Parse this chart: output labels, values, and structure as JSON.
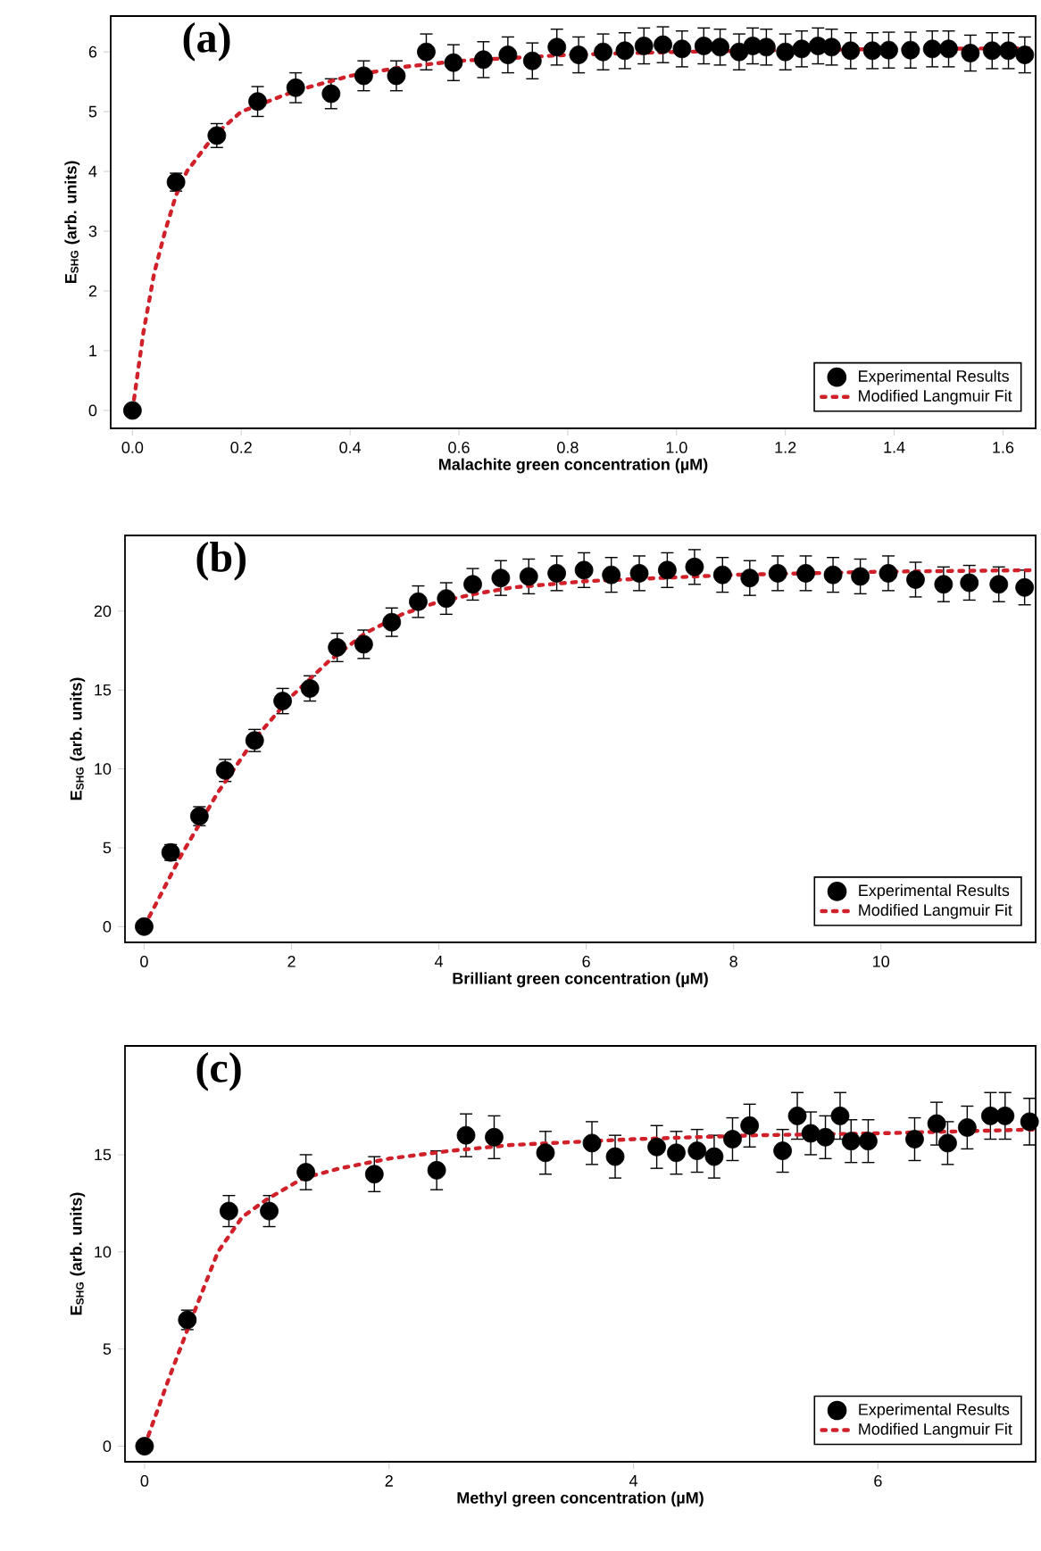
{
  "chart_data": [
    {
      "type": "scatter",
      "annotations": [
        "(a)"
      ],
      "xlabel": "Malachite green concentration (µM)",
      "ylabel": "E$_{SHG}$ (arb. units)",
      "legend": "bottom right",
      "xlim": [
        -0.04,
        1.66
      ],
      "ylim": [
        -0.3,
        6.6
      ],
      "xticks": [
        {
          "value": 0,
          "label": "0.0"
        },
        {
          "value": 0.2,
          "label": "0.2"
        },
        {
          "value": 0.4,
          "label": "0.4"
        },
        {
          "value": 0.6,
          "label": "0.6"
        },
        {
          "value": 0.8,
          "label": "0.8"
        },
        {
          "value": 1.0,
          "label": "1.0"
        },
        {
          "value": 1.2,
          "label": "1.2"
        },
        {
          "value": 1.4,
          "label": "1.4"
        },
        {
          "value": 1.6,
          "label": "1.6"
        }
      ],
      "yticks": [
        0,
        1,
        2,
        3,
        4,
        5,
        6
      ],
      "series": [
        {
          "name": "Experimental Results",
          "color": "#000000",
          "marker": "circle",
          "x": [
            0,
            0.08,
            0.155,
            0.23,
            0.3,
            0.365,
            0.425,
            0.485,
            0.54,
            0.59,
            0.645,
            0.69,
            0.735,
            0.78,
            0.82,
            0.865,
            0.905,
            0.94,
            0.975,
            1.01,
            1.05,
            1.08,
            1.115,
            1.14,
            1.165,
            1.2,
            1.23,
            1.26,
            1.285,
            1.32,
            1.36,
            1.39,
            1.43,
            1.47,
            1.5,
            1.54,
            1.58,
            1.61,
            1.64
          ],
          "values": [
            0,
            3.82,
            4.6,
            5.17,
            5.4,
            5.3,
            5.6,
            5.6,
            6.0,
            5.82,
            5.87,
            5.95,
            5.85,
            6.08,
            5.95,
            6.0,
            6.02,
            6.1,
            6.12,
            6.05,
            6.1,
            6.08,
            6.0,
            6.1,
            6.08,
            6.0,
            6.05,
            6.1,
            6.08,
            6.02,
            6.02,
            6.03,
            6.03,
            6.05,
            6.05,
            5.98,
            6.02,
            6.02,
            5.95
          ],
          "errors": [
            0.05,
            0.15,
            0.2,
            0.25,
            0.25,
            0.25,
            0.25,
            0.25,
            0.3,
            0.3,
            0.3,
            0.3,
            0.3,
            0.3,
            0.3,
            0.3,
            0.3,
            0.3,
            0.3,
            0.3,
            0.3,
            0.3,
            0.3,
            0.3,
            0.3,
            0.3,
            0.3,
            0.3,
            0.3,
            0.3,
            0.3,
            0.3,
            0.3,
            0.3,
            0.3,
            0.3,
            0.3,
            0.3,
            0.3
          ]
        },
        {
          "name": "Modified Langmuir Fit",
          "type": "line",
          "line_style": "dotted",
          "marker": "none",
          "color": "#d0202a",
          "x": [
            0,
            0.02,
            0.04,
            0.06,
            0.08,
            0.1,
            0.15,
            0.2,
            0.3,
            0.4,
            0.5,
            0.6,
            0.8,
            1.0,
            1.2,
            1.4,
            1.66
          ],
          "values": [
            0,
            1.3,
            2.3,
            3.0,
            3.6,
            4.0,
            4.6,
            5.0,
            5.35,
            5.6,
            5.75,
            5.85,
            5.95,
            6.0,
            6.03,
            6.05,
            6.06
          ]
        }
      ]
    },
    {
      "type": "scatter",
      "annotations": [
        "(b)"
      ],
      "xlabel": "Brilliant green concentration (µM)",
      "ylabel": "E$_{SHG}$ (arb. units)",
      "legend": "bottom right",
      "xlim": [
        -0.26,
        12.1
      ],
      "ylim": [
        -1.0,
        24.8
      ],
      "xticks": [
        0,
        2,
        4,
        6,
        8,
        10
      ],
      "yticks": [
        0,
        5,
        10,
        15,
        20
      ],
      "series": [
        {
          "name": "Experimental Results",
          "color": "#000000",
          "marker": "circle",
          "x": [
            0,
            0.36,
            0.75,
            1.1,
            1.5,
            1.88,
            2.25,
            2.62,
            2.98,
            3.36,
            3.72,
            4.1,
            4.46,
            4.84,
            5.22,
            5.6,
            5.97,
            6.34,
            6.72,
            7.1,
            7.47,
            7.85,
            8.22,
            8.6,
            8.98,
            9.35,
            9.72,
            10.1,
            10.47,
            10.85,
            11.2,
            11.6,
            11.95
          ],
          "values": [
            0,
            4.7,
            7.0,
            9.9,
            11.8,
            14.3,
            15.1,
            17.7,
            17.9,
            19.3,
            20.6,
            20.8,
            21.7,
            22.1,
            22.2,
            22.4,
            22.6,
            22.3,
            22.4,
            22.6,
            22.8,
            22.3,
            22.1,
            22.4,
            22.4,
            22.3,
            22.2,
            22.4,
            22.0,
            21.7,
            21.8,
            21.7,
            21.5
          ],
          "errors": [
            0.3,
            0.5,
            0.6,
            0.7,
            0.7,
            0.8,
            0.8,
            0.9,
            0.9,
            0.9,
            1.0,
            1.0,
            1.0,
            1.1,
            1.1,
            1.1,
            1.1,
            1.1,
            1.1,
            1.1,
            1.1,
            1.1,
            1.1,
            1.1,
            1.1,
            1.1,
            1.1,
            1.1,
            1.1,
            1.1,
            1.1,
            1.1,
            1.1
          ]
        },
        {
          "name": "Modified Langmuir Fit",
          "type": "line",
          "line_style": "dotted",
          "marker": "none",
          "color": "#d0202a",
          "x": [
            0,
            0.5,
            1,
            1.5,
            2,
            2.5,
            3,
            3.5,
            4,
            4.5,
            5,
            6,
            7,
            8,
            10,
            12.1
          ],
          "values": [
            0,
            4.5,
            8.5,
            11.9,
            14.6,
            16.8,
            18.6,
            19.8,
            20.6,
            21.1,
            21.5,
            21.9,
            22.1,
            22.3,
            22.5,
            22.6
          ]
        }
      ]
    },
    {
      "type": "scatter",
      "annotations": [
        "(c)"
      ],
      "xlabel": "Methyl green concentration (µM)",
      "ylabel": "E$_{SHG}$ (arb. units)",
      "legend": "bottom right",
      "xlim": [
        -0.16,
        7.29
      ],
      "ylim": [
        -0.8,
        20.6
      ],
      "xticks": [
        0,
        2,
        4,
        6
      ],
      "yticks": [
        0,
        5,
        10,
        15
      ],
      "series": [
        {
          "name": "Experimental Results",
          "color": "#000000",
          "marker": "circle",
          "x": [
            0,
            0.35,
            0.69,
            1.02,
            1.32,
            1.88,
            2.39,
            2.63,
            2.86,
            3.28,
            3.66,
            3.85,
            4.19,
            4.35,
            4.52,
            4.66,
            4.81,
            4.95,
            5.22,
            5.34,
            5.45,
            5.57,
            5.69,
            5.78,
            5.92,
            6.3,
            6.48,
            6.57,
            6.73,
            6.92,
            7.04,
            7.24
          ],
          "values": [
            0,
            6.5,
            12.1,
            12.1,
            14.1,
            14.0,
            14.2,
            16.0,
            15.9,
            15.1,
            15.6,
            14.9,
            15.4,
            15.1,
            15.2,
            14.9,
            15.8,
            16.5,
            15.2,
            17.0,
            16.1,
            15.9,
            17.0,
            15.7,
            15.7,
            15.8,
            16.6,
            15.6,
            16.4,
            17.0,
            17.0,
            16.7
          ],
          "errors": [
            0.3,
            0.5,
            0.8,
            0.8,
            0.9,
            0.9,
            1.0,
            1.1,
            1.1,
            1.1,
            1.1,
            1.1,
            1.1,
            1.1,
            1.1,
            1.1,
            1.1,
            1.1,
            1.1,
            1.2,
            1.1,
            1.1,
            1.2,
            1.1,
            1.1,
            1.1,
            1.1,
            1.1,
            1.1,
            1.2,
            1.2,
            1.2
          ]
        },
        {
          "name": "Modified Langmuir Fit",
          "type": "line",
          "line_style": "dotted",
          "marker": "none",
          "color": "#d0202a",
          "x": [
            0,
            0.2,
            0.4,
            0.6,
            0.8,
            1.0,
            1.3,
            1.6,
            2,
            2.5,
            3,
            4,
            5,
            6,
            7.29
          ],
          "values": [
            0,
            3.5,
            6.8,
            10,
            11.8,
            12.7,
            13.8,
            14.3,
            14.8,
            15.2,
            15.5,
            15.8,
            16.0,
            16.1,
            16.3
          ]
        }
      ]
    }
  ]
}
